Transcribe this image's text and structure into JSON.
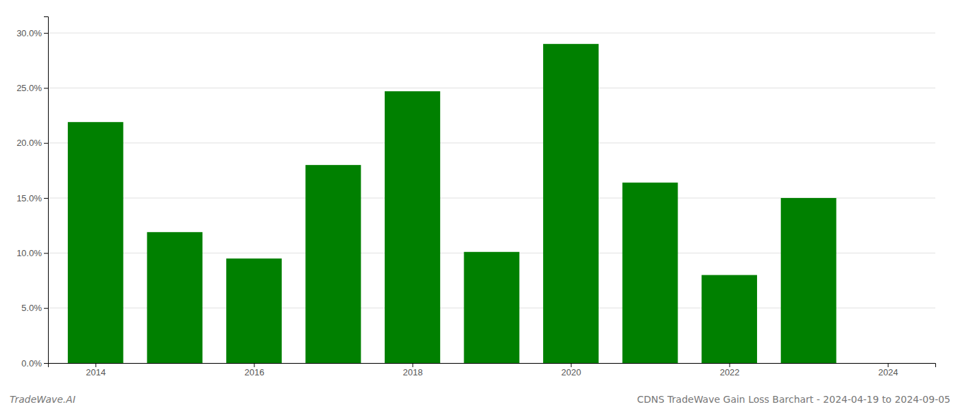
{
  "chart_data": {
    "type": "bar",
    "x": [
      2014,
      2015,
      2016,
      2017,
      2018,
      2019,
      2020,
      2021,
      2022,
      2023
    ],
    "values": [
      0.219,
      0.119,
      0.095,
      0.18,
      0.247,
      0.101,
      0.29,
      0.164,
      0.08,
      0.15
    ],
    "color": "#008000",
    "xlim": [
      2013.4,
      2024.6
    ],
    "xticks": [
      2014,
      2016,
      2018,
      2020,
      2022,
      2024
    ],
    "ylim": [
      0,
      0.315
    ],
    "yticks": [
      {
        "value": 0.0,
        "label": "0.0%"
      },
      {
        "value": 0.05,
        "label": "5.0%"
      },
      {
        "value": 0.1,
        "label": "10.0%"
      },
      {
        "value": 0.15,
        "label": "15.0%"
      },
      {
        "value": 0.2,
        "label": "20.0%"
      },
      {
        "value": 0.25,
        "label": "25.0%"
      },
      {
        "value": 0.3,
        "label": "30.0%"
      }
    ],
    "grid": true,
    "annotations": [
      "TradeWave.AI",
      "CDNS TradeWave Gain Loss Barchart - 2024-04-19 to 2024-09-05"
    ]
  }
}
